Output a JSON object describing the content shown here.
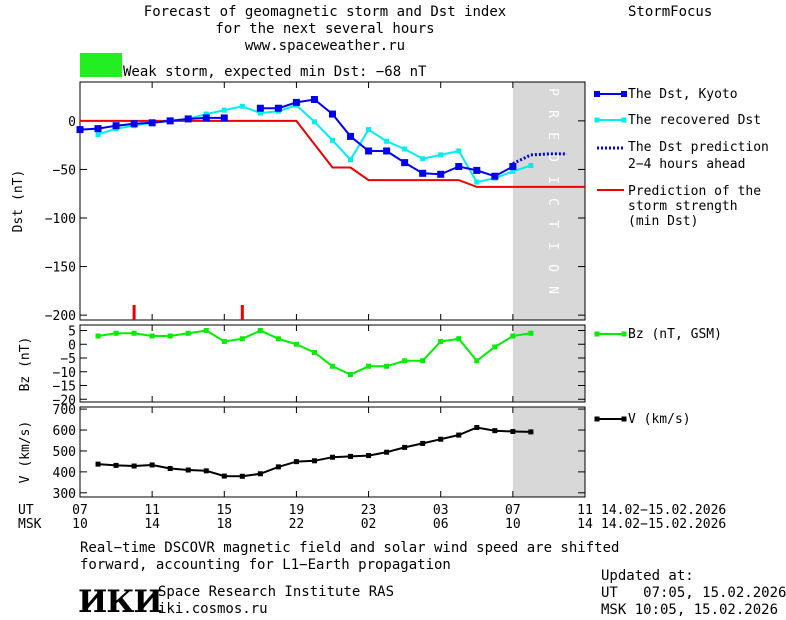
{
  "header": {
    "title_lines": [
      "Forecast of geomagnetic storm and Dst index",
      "for the next several hours",
      "www.spaceweather.ru"
    ],
    "brand": "StormFocus",
    "storm_label": "Weak storm, expected min Dst: −68 nT",
    "storm_color": "#22ee22"
  },
  "prediction_label": "PREDICTION",
  "axis_labels": {
    "dst": "Dst (nT)",
    "bz": "Bz (nT)",
    "v": "V (km/s)",
    "ut": "UT",
    "msk": "MSK"
  },
  "x_axis": {
    "ut_ticks": [
      "07",
      "11",
      "15",
      "19",
      "23",
      "03",
      "07",
      "11"
    ],
    "msk_ticks": [
      "10",
      "14",
      "18",
      "22",
      "02",
      "06",
      "10",
      "14"
    ],
    "ut_range": "14.02−15.02.2026",
    "msk_range": "14.02−15.02.2026"
  },
  "legend": {
    "kyoto": "The Dst, Kyoto",
    "recovered": "The recovered Dst",
    "prediction": [
      "The Dst prediction",
      "2−4 hours ahead"
    ],
    "strength": [
      "Prediction of the",
      "storm strength",
      "(min Dst)"
    ],
    "bz": "Bz (nT, GSM)",
    "v": "V (km/s)"
  },
  "colors": {
    "kyoto": "#0000ee",
    "recovered": "#00eeee",
    "strength": "#ee0000",
    "bz": "#00ee00",
    "v": "#000000",
    "prediction_band": "#d8d8d8"
  },
  "footer": {
    "note_lines": [
      "Real−time DSCOVR magnetic field and solar wind speed are shifted",
      "forward, accounting for L1−Earth propagation"
    ],
    "logo": "ИКИ",
    "institute": "Space Research Institute RAS",
    "website": "iki.cosmos.ru",
    "updated_label": "Updated at:",
    "updated_ut": "UT   07:05, 15.02.2026",
    "updated_msk": "MSK 10:05, 15.02.2026"
  },
  "chart_data": {
    "type": "line",
    "x_unit": "UT hour",
    "x_range": [
      "14.02 07:00 UT",
      "15.02 11:00 UT"
    ],
    "prediction_window": [
      "15.02 07:00 UT",
      "15.02 11:00 UT"
    ],
    "panels": [
      {
        "name": "Dst",
        "ylabel": "Dst (nT)",
        "ylim": [
          -205,
          40
        ],
        "yticks": [
          0,
          -50,
          -100,
          -150,
          -200
        ],
        "series": [
          {
            "name": "The Dst, Kyoto",
            "x": [
              "14.02 07:00",
              "14.02 08:00",
              "14.02 09:00",
              "14.02 10:00",
              "14.02 11:00",
              "14.02 12:00",
              "14.02 13:00",
              "14.02 14:00",
              "14.02 15:00",
              "14.02 16:00",
              "14.02 17:00",
              "14.02 18:00",
              "14.02 19:00",
              "14.02 20:00",
              "14.02 21:00",
              "14.02 22:00",
              "14.02 23:00",
              "15.02 00:00",
              "15.02 01:00",
              "15.02 02:00",
              "15.02 03:00",
              "15.02 04:00",
              "15.02 05:00",
              "15.02 06:00",
              "15.02 07:00"
            ],
            "y": [
              -9,
              -8,
              -5,
              -3,
              -2,
              0,
              2,
              3,
              3,
              null,
              13,
              13,
              19,
              22,
              7,
              -16,
              -31,
              -31,
              -43,
              -54,
              -55,
              -47,
              -51,
              -57,
              -47
            ]
          },
          {
            "name": "The recovered Dst",
            "x": [
              "14.02 08:00",
              "14.02 09:00",
              "14.02 10:00",
              "14.02 11:00",
              "14.02 12:00",
              "14.02 13:00",
              "14.02 14:00",
              "14.02 15:00",
              "14.02 16:00",
              "14.02 17:00",
              "14.02 18:00",
              "14.02 19:00",
              "14.02 20:00",
              "14.02 21:00",
              "14.02 22:00",
              "14.02 23:00",
              "15.02 00:00",
              "15.02 01:00",
              "15.02 02:00",
              "15.02 03:00",
              "15.02 04:00",
              "15.02 05:00",
              "15.02 06:00",
              "15.02 07:00",
              "15.02 08:00"
            ],
            "y": [
              -14,
              -8,
              -5,
              -2,
              0,
              2,
              7,
              11,
              15,
              8,
              10,
              16,
              -1,
              -20,
              -40,
              -9,
              -21,
              -29,
              -39,
              -35,
              -31,
              -63,
              -59,
              -52,
              -46
            ]
          },
          {
            "name": "The Dst prediction 2−4 hours ahead",
            "x": [
              "15.02 07:00",
              "15.02 08:00",
              "15.02 09:00",
              "15.02 10:00"
            ],
            "y": [
              -44,
              -35,
              -34,
              -34
            ]
          },
          {
            "name": "Prediction of the storm strength (min Dst)",
            "x": [
              "14.02 07:00",
              "14.02 19:00",
              "14.02 21:00",
              "14.02 22:00",
              "14.02 23:00",
              "15.02 04:00",
              "15.02 05:00",
              "15.02 11:00"
            ],
            "y": [
              0,
              0,
              -48,
              -48,
              -61,
              -61,
              -68,
              -68
            ]
          }
        ],
        "markers": [
          "14.02 10:00",
          "14.02 16:00"
        ]
      },
      {
        "name": "Bz",
        "ylabel": "Bz (nT)",
        "ylim": [
          -21,
          7
        ],
        "yticks": [
          5,
          0,
          -5,
          -10,
          -15,
          -20
        ],
        "series": [
          {
            "name": "Bz (nT, GSM)",
            "x": [
              "14.02 08:00",
              "14.02 09:00",
              "14.02 10:00",
              "14.02 11:00",
              "14.02 12:00",
              "14.02 13:00",
              "14.02 14:00",
              "14.02 15:00",
              "14.02 16:00",
              "14.02 17:00",
              "14.02 18:00",
              "14.02 19:00",
              "14.02 20:00",
              "14.02 21:00",
              "14.02 22:00",
              "14.02 23:00",
              "15.02 00:00",
              "15.02 01:00",
              "15.02 02:00",
              "15.02 03:00",
              "15.02 04:00",
              "15.02 05:00",
              "15.02 06:00",
              "15.02 07:00",
              "15.02 08:00"
            ],
            "y": [
              3,
              4,
              4,
              3,
              3,
              4,
              5,
              1,
              2,
              5,
              2,
              0,
              -3,
              -8,
              -11,
              -8,
              -8,
              -6,
              -6,
              1,
              2,
              -6,
              -1,
              3,
              4
            ]
          }
        ]
      },
      {
        "name": "V",
        "ylabel": "V (km/s)",
        "ylim": [
          280,
          710
        ],
        "yticks": [
          300,
          400,
          500,
          600,
          700
        ],
        "series": [
          {
            "name": "V (km/s)",
            "x": [
              "14.02 08:00",
              "14.02 09:00",
              "14.02 10:00",
              "14.02 11:00",
              "14.02 12:00",
              "14.02 13:00",
              "14.02 14:00",
              "14.02 15:00",
              "14.02 16:00",
              "14.02 17:00",
              "14.02 18:00",
              "14.02 19:00",
              "14.02 20:00",
              "14.02 21:00",
              "14.02 22:00",
              "14.02 23:00",
              "15.02 00:00",
              "15.02 01:00",
              "15.02 02:00",
              "15.02 03:00",
              "15.02 04:00",
              "15.02 05:00",
              "15.02 06:00",
              "15.02 07:00",
              "15.02 08:00"
            ],
            "y": [
              437,
              431,
              428,
              433,
              416,
              409,
              405,
              380,
              379,
              391,
              424,
              449,
              453,
              470,
              474,
              478,
              494,
              517,
              536,
              556,
              576,
              612,
              597,
              593,
              591
            ]
          }
        ]
      }
    ]
  }
}
